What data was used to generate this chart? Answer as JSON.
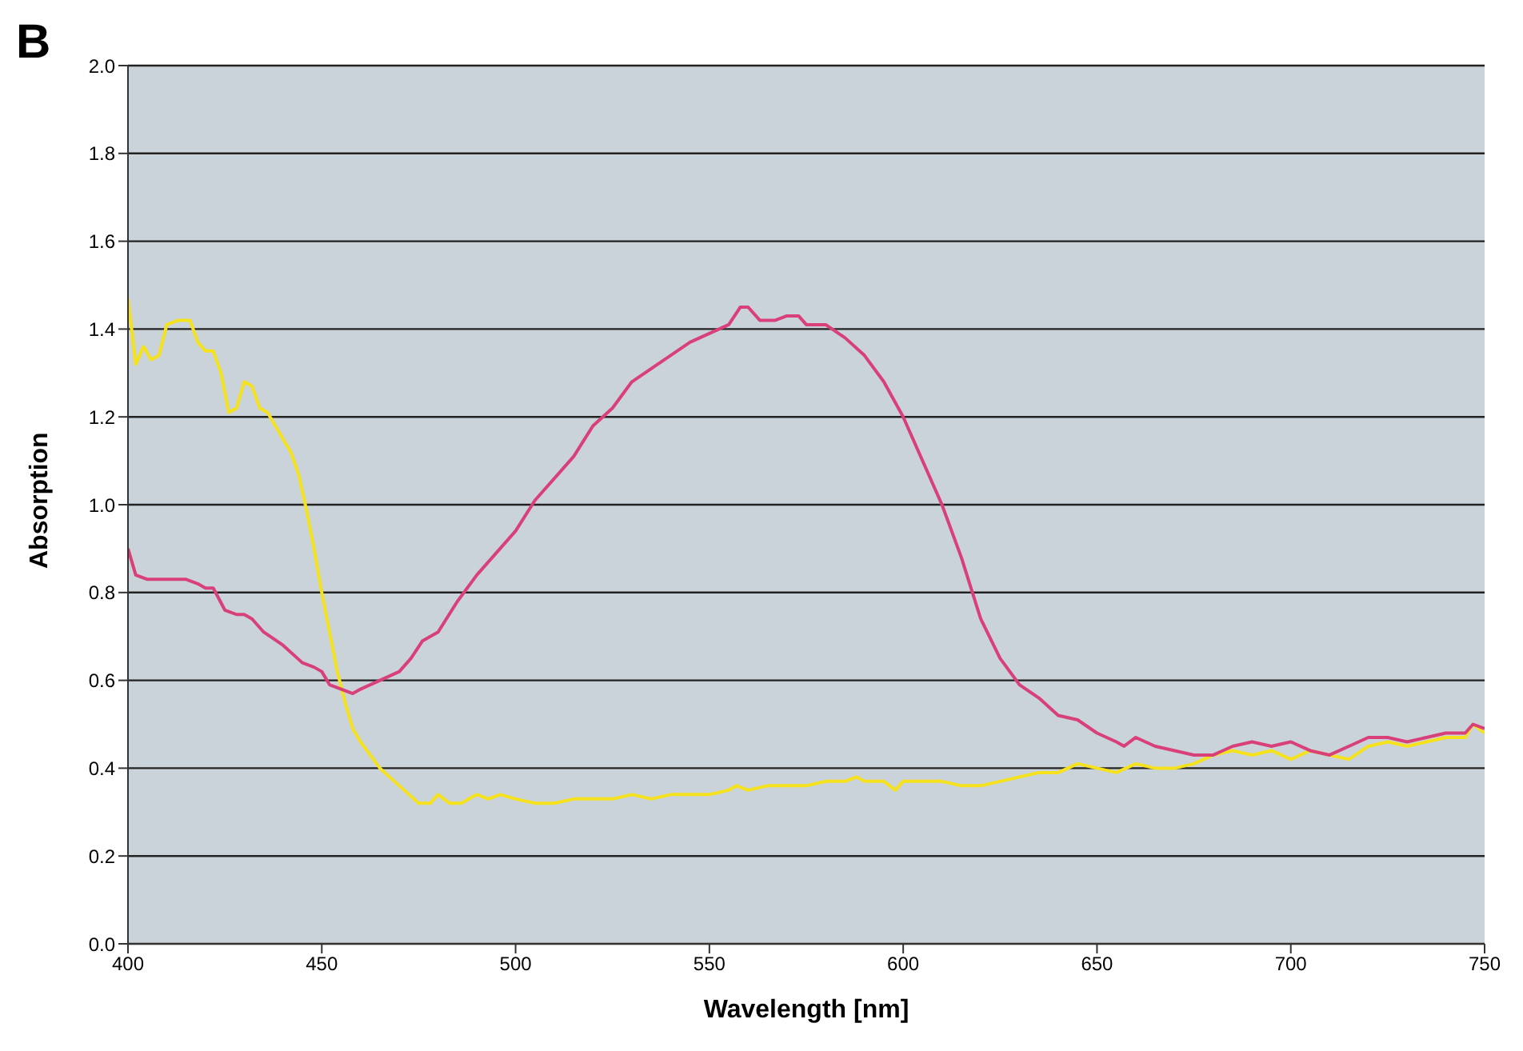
{
  "chart_data": {
    "type": "line",
    "title": "B",
    "xlabel": "Wavelength [nm]",
    "ylabel": "Absorption",
    "xlim": [
      400,
      750
    ],
    "xticks": [
      400,
      450,
      500,
      550,
      600,
      650,
      700,
      750
    ],
    "ylim": [
      0,
      2
    ],
    "yticks": [
      {
        "value": 0,
        "label": "0.0"
      },
      0.2,
      0.4,
      0.6,
      0.8,
      {
        "value": 1,
        "label": "1.0"
      },
      1.2,
      1.4,
      1.6,
      1.8,
      {
        "value": 2,
        "label": "2.0"
      }
    ],
    "grid": "y",
    "legend": false,
    "marker": "none",
    "line_style": "solid",
    "series": [
      {
        "color": "#f5e21c",
        "x": [
          400,
          402,
          404,
          406,
          408,
          410,
          413,
          416,
          418,
          420,
          422,
          424,
          426,
          428,
          430,
          432,
          434,
          436,
          438,
          440,
          442,
          444,
          446,
          448,
          450,
          452,
          454,
          456,
          458,
          460,
          465,
          470,
          475,
          478,
          480,
          483,
          486,
          490,
          493,
          496,
          500,
          505,
          510,
          515,
          520,
          525,
          530,
          535,
          540,
          545,
          550,
          555,
          557,
          560,
          565,
          570,
          575,
          580,
          585,
          588,
          590,
          595,
          598,
          600,
          605,
          610,
          615,
          620,
          625,
          630,
          635,
          640,
          645,
          650,
          655,
          660,
          665,
          670,
          675,
          680,
          685,
          690,
          695,
          700,
          705,
          710,
          715,
          720,
          725,
          730,
          735,
          740,
          745,
          747,
          750
        ],
        "values": [
          1.47,
          1.32,
          1.36,
          1.33,
          1.34,
          1.41,
          1.42,
          1.42,
          1.37,
          1.35,
          1.35,
          1.3,
          1.21,
          1.22,
          1.28,
          1.27,
          1.22,
          1.21,
          1.18,
          1.15,
          1.12,
          1.07,
          0.99,
          0.9,
          0.8,
          0.71,
          0.62,
          0.55,
          0.49,
          0.46,
          0.4,
          0.36,
          0.32,
          0.32,
          0.34,
          0.32,
          0.32,
          0.34,
          0.33,
          0.34,
          0.33,
          0.32,
          0.32,
          0.33,
          0.33,
          0.33,
          0.34,
          0.33,
          0.34,
          0.34,
          0.34,
          0.35,
          0.36,
          0.35,
          0.36,
          0.36,
          0.36,
          0.37,
          0.37,
          0.38,
          0.37,
          0.37,
          0.35,
          0.37,
          0.37,
          0.37,
          0.36,
          0.36,
          0.37,
          0.38,
          0.39,
          0.39,
          0.41,
          0.4,
          0.39,
          0.41,
          0.4,
          0.4,
          0.41,
          0.43,
          0.44,
          0.43,
          0.44,
          0.42,
          0.44,
          0.43,
          0.42,
          0.45,
          0.46,
          0.45,
          0.46,
          0.47,
          0.47,
          0.5,
          0.48
        ]
      },
      {
        "color": "#d9407a",
        "x": [
          400,
          402,
          405,
          410,
          415,
          418,
          420,
          422,
          425,
          428,
          430,
          432,
          435,
          440,
          445,
          448,
          450,
          452,
          455,
          458,
          460,
          465,
          470,
          473,
          476,
          480,
          485,
          490,
          495,
          500,
          505,
          510,
          515,
          520,
          525,
          530,
          535,
          540,
          545,
          550,
          555,
          558,
          560,
          563,
          567,
          570,
          573,
          575,
          580,
          585,
          590,
          595,
          600,
          605,
          610,
          615,
          620,
          625,
          630,
          635,
          640,
          645,
          650,
          655,
          657,
          660,
          665,
          670,
          675,
          680,
          685,
          690,
          695,
          700,
          705,
          710,
          715,
          720,
          725,
          730,
          735,
          740,
          745,
          747,
          750
        ],
        "values": [
          0.9,
          0.84,
          0.83,
          0.83,
          0.83,
          0.82,
          0.81,
          0.81,
          0.76,
          0.75,
          0.75,
          0.74,
          0.71,
          0.68,
          0.64,
          0.63,
          0.62,
          0.59,
          0.58,
          0.57,
          0.58,
          0.6,
          0.62,
          0.65,
          0.69,
          0.71,
          0.78,
          0.84,
          0.89,
          0.94,
          1.01,
          1.06,
          1.11,
          1.18,
          1.22,
          1.28,
          1.31,
          1.34,
          1.37,
          1.39,
          1.41,
          1.45,
          1.45,
          1.42,
          1.42,
          1.43,
          1.43,
          1.41,
          1.41,
          1.38,
          1.34,
          1.28,
          1.2,
          1.1,
          1.0,
          0.88,
          0.74,
          0.65,
          0.59,
          0.56,
          0.52,
          0.51,
          0.48,
          0.46,
          0.45,
          0.47,
          0.45,
          0.44,
          0.43,
          0.43,
          0.45,
          0.46,
          0.45,
          0.46,
          0.44,
          0.43,
          0.45,
          0.47,
          0.47,
          0.46,
          0.47,
          0.48,
          0.48,
          0.5,
          0.49
        ]
      }
    ]
  }
}
